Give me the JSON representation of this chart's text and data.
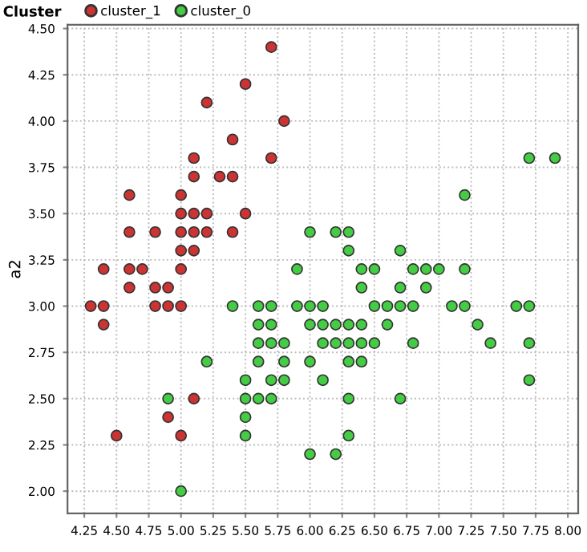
{
  "chart_data": {
    "type": "scatter",
    "ylabel": "a2",
    "legend_title": "Cluster",
    "legend": "top left",
    "grid": true,
    "marker": "circle",
    "xlim": [
      4.12,
      8.08
    ],
    "ylim": [
      1.88,
      4.52
    ],
    "xticks": [
      {
        "value": 4.25,
        "label": "4.25"
      },
      {
        "value": 4.5,
        "label": "4.50"
      },
      {
        "value": 4.75,
        "label": "4.75"
      },
      {
        "value": 5,
        "label": "5.00"
      },
      {
        "value": 5.25,
        "label": "5.25"
      },
      {
        "value": 5.5,
        "label": "5.50"
      },
      {
        "value": 5.75,
        "label": "5.75"
      },
      {
        "value": 6,
        "label": "6.00"
      },
      {
        "value": 6.25,
        "label": "6.25"
      },
      {
        "value": 6.5,
        "label": "6.50"
      },
      {
        "value": 6.75,
        "label": "6.75"
      },
      {
        "value": 7,
        "label": "7.00"
      },
      {
        "value": 7.25,
        "label": "7.25"
      },
      {
        "value": 7.5,
        "label": "7.50"
      },
      {
        "value": 7.75,
        "label": "7.75"
      },
      {
        "value": 8,
        "label": "8.00"
      }
    ],
    "yticks": [
      {
        "value": 2,
        "label": "2.00"
      },
      {
        "value": 2.25,
        "label": "2.25"
      },
      {
        "value": 2.5,
        "label": "2.50"
      },
      {
        "value": 2.75,
        "label": "2.75"
      },
      {
        "value": 3,
        "label": "3.00"
      },
      {
        "value": 3.25,
        "label": "3.25"
      },
      {
        "value": 3.5,
        "label": "3.50"
      },
      {
        "value": 3.75,
        "label": "3.75"
      },
      {
        "value": 4,
        "label": "4.00"
      },
      {
        "value": 4.25,
        "label": "4.25"
      },
      {
        "value": 4.5,
        "label": "4.50"
      }
    ],
    "series": [
      {
        "name": "cluster_1",
        "color": "#cc3333",
        "x": [
          5.7,
          5.5,
          5.2,
          5.8,
          5.4,
          5.1,
          5.7,
          5.1,
          5.3,
          5.4,
          4.6,
          5.0,
          5.0,
          5.1,
          5.2,
          5.5,
          4.6,
          4.8,
          5.0,
          5.1,
          5.2,
          5.4,
          5.0,
          5.1,
          4.4,
          4.6,
          4.7,
          5.0,
          4.6,
          4.8,
          4.9,
          4.3,
          4.4,
          4.8,
          4.9,
          5.0,
          4.4,
          5.1,
          4.9,
          4.5,
          5.0
        ],
        "values": [
          4.4,
          4.2,
          4.1,
          4.0,
          3.9,
          3.8,
          3.8,
          3.7,
          3.7,
          3.7,
          3.6,
          3.6,
          3.5,
          3.5,
          3.5,
          3.5,
          3.4,
          3.4,
          3.4,
          3.4,
          3.4,
          3.4,
          3.3,
          3.3,
          3.2,
          3.2,
          3.2,
          3.2,
          3.1,
          3.1,
          3.1,
          3.0,
          3.0,
          3.0,
          3.0,
          3.0,
          2.9,
          2.5,
          2.4,
          2.3,
          2.3
        ]
      },
      {
        "name": "cluster_0",
        "color": "#44cc44",
        "x": [
          7.7,
          7.9,
          7.2,
          6.0,
          6.2,
          6.3,
          6.3,
          6.7,
          5.9,
          6.4,
          6.5,
          6.8,
          6.9,
          7.0,
          7.2,
          6.4,
          6.7,
          6.9,
          5.4,
          5.6,
          5.7,
          5.9,
          6.0,
          6.1,
          6.5,
          6.6,
          6.7,
          6.8,
          7.1,
          7.2,
          7.6,
          7.7,
          5.6,
          5.7,
          6.0,
          6.1,
          6.2,
          6.3,
          6.4,
          6.6,
          7.3,
          5.6,
          5.7,
          5.8,
          6.1,
          6.2,
          6.3,
          6.4,
          6.5,
          6.8,
          7.4,
          7.7,
          5.2,
          5.6,
          5.8,
          6.0,
          6.3,
          6.4,
          5.5,
          5.7,
          5.8,
          6.1,
          7.7,
          4.9,
          5.5,
          5.6,
          5.7,
          6.3,
          6.7,
          5.5,
          5.5,
          6.3,
          6.0,
          6.2,
          5.0
        ],
        "values": [
          3.8,
          3.8,
          3.6,
          3.4,
          3.4,
          3.4,
          3.3,
          3.3,
          3.2,
          3.2,
          3.2,
          3.2,
          3.2,
          3.2,
          3.2,
          3.1,
          3.1,
          3.1,
          3.0,
          3.0,
          3.0,
          3.0,
          3.0,
          3.0,
          3.0,
          3.0,
          3.0,
          3.0,
          3.0,
          3.0,
          3.0,
          3.0,
          2.9,
          2.9,
          2.9,
          2.9,
          2.9,
          2.9,
          2.9,
          2.9,
          2.9,
          2.8,
          2.8,
          2.8,
          2.8,
          2.8,
          2.8,
          2.8,
          2.8,
          2.8,
          2.8,
          2.8,
          2.7,
          2.7,
          2.7,
          2.7,
          2.7,
          2.7,
          2.6,
          2.6,
          2.6,
          2.6,
          2.6,
          2.5,
          2.5,
          2.5,
          2.5,
          2.5,
          2.5,
          2.4,
          2.3,
          2.3,
          2.2,
          2.2,
          2.0
        ]
      }
    ]
  }
}
